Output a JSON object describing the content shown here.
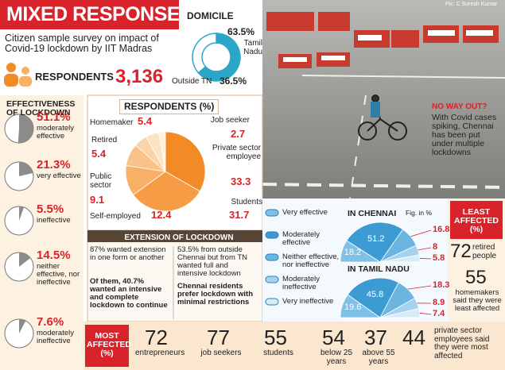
{
  "header": {
    "title": "MIXED RESPONSE",
    "subtitle": "Citizen sample survey on impact of Covid-19 lockdown by IIT Madras",
    "respondents_label": "RESPONDENTS",
    "respondents_value": "3,136",
    "credit": "Pic: C Suresh Kumar"
  },
  "photo_caption": {
    "title": "NO WAY OUT?",
    "text": "With Covid cases spiking, Chennai has been put under multiple lockdowns"
  },
  "chart_data": [
    {
      "type": "donut",
      "title": "DOMICILE",
      "categories": [
        "Tamil Nadu",
        "Outside TN"
      ],
      "values": [
        63.5,
        36.5
      ],
      "value_labels": [
        "63.5%",
        "36.5%"
      ],
      "colors": [
        "#2aa7c8",
        "#ffffff"
      ]
    },
    {
      "type": "pie-icons",
      "title": "EFFECTIVENESS OF LOCKDOWN",
      "categories": [
        "moderately effective",
        "very effective",
        "ineffective",
        "neither effective, nor ineffective",
        "moderately ineffective"
      ],
      "values": [
        51.1,
        21.3,
        5.5,
        14.5,
        7.6
      ],
      "value_labels": [
        "51.1%",
        "21.3%",
        "5.5%",
        "14.5%",
        "7.6%"
      ],
      "color": "#8c8c8c"
    },
    {
      "type": "pie",
      "title": "RESPONDENTS (%)",
      "categories": [
        "Private sector employee",
        "Students",
        "Self-employed",
        "Public sector",
        "Retired",
        "Homemaker",
        "Job seeker"
      ],
      "values": [
        33.3,
        31.7,
        12.4,
        9.1,
        5.4,
        5.4,
        2.7
      ],
      "colors": [
        "#f28a26",
        "#f59c45",
        "#f7b066",
        "#f9c288",
        "#fbd3a8",
        "#fde2c4",
        "#fff0dd"
      ]
    },
    {
      "type": "semi-pie",
      "note": "Fig. in %",
      "categories": [
        "Very effective",
        "Moderately effective",
        "Neither effective, nor ineffective",
        "Moderately ineffective",
        "Very ineffective"
      ],
      "colors": [
        "#7fc0e6",
        "#3d9bd3",
        "#6cb5e1",
        "#a5d2ee",
        "#d8ecf8"
      ],
      "series": [
        {
          "name": "IN CHENNAI",
          "values": [
            18.2,
            51.2,
            16.8,
            8,
            5.8
          ]
        },
        {
          "name": "IN TAMIL NADU",
          "values": [
            19.6,
            45.8,
            18.3,
            8.9,
            7.4
          ]
        }
      ]
    },
    {
      "type": "figures",
      "title": "LEAST AFFECTED (%)",
      "categories": [
        "retired people",
        "homemakers said they were least affected"
      ],
      "values": [
        72,
        55
      ]
    },
    {
      "type": "figures",
      "title": "MOST AFFECTED (%)",
      "categories": [
        "entrepreneurs",
        "job seekers",
        "students",
        "below 25 years",
        "above 55 years",
        "private sector employees said they were most affected"
      ],
      "values": [
        72,
        77,
        55,
        54,
        37,
        44
      ]
    }
  ],
  "extension": {
    "title": "EXTENSION OF LOCKDOWN",
    "left": [
      "87% wanted extension in one form or another",
      "Of them, 40.7% wanted an intensive and complete lockdown to continue"
    ],
    "right": [
      "53.5% from outside Chennai but from TN wanted full and intensive lockdown",
      "Chennai residents prefer lockdown with minimal restrictions"
    ]
  }
}
